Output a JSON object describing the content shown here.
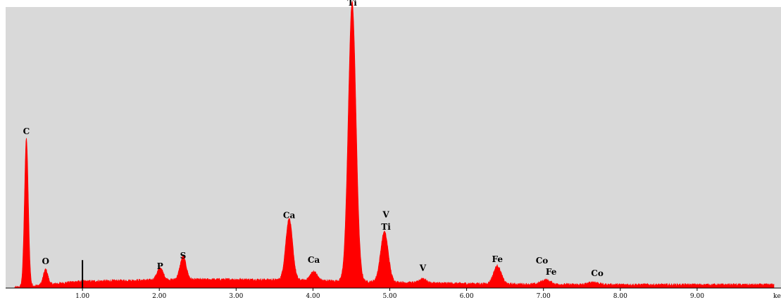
{
  "chart_data": {
    "type": "area",
    "x_unit_label": "ke",
    "xlim": [
      0,
      10.0
    ],
    "ylim": [
      0,
      100
    ],
    "grid": false,
    "colors": {
      "plot_bg": "#d9d9d9",
      "spectrum": "#ff0000",
      "axis": "#000000"
    },
    "x_ticks": [
      {
        "value": 1.0,
        "label": "1.00"
      },
      {
        "value": 2.0,
        "label": "2.00"
      },
      {
        "value": 3.0,
        "label": "3.00"
      },
      {
        "value": 4.0,
        "label": "4.00"
      },
      {
        "value": 5.0,
        "label": "5.00"
      },
      {
        "value": 6.0,
        "label": "6.00"
      },
      {
        "value": 7.0,
        "label": "7.00"
      },
      {
        "value": 8.0,
        "label": "8.00"
      },
      {
        "value": 9.0,
        "label": "9.00"
      }
    ],
    "marker": {
      "x": 1.0,
      "height": 10
    },
    "peaks": [
      {
        "x": 0.27,
        "height": 53,
        "width": 0.025
      },
      {
        "x": 0.52,
        "height": 5.5,
        "width": 0.03
      },
      {
        "x": 2.01,
        "height": 4.3,
        "width": 0.04
      },
      {
        "x": 2.31,
        "height": 8.3,
        "width": 0.04
      },
      {
        "x": 3.69,
        "height": 22,
        "width": 0.045
      },
      {
        "x": 4.01,
        "height": 3.2,
        "width": 0.045
      },
      {
        "x": 4.51,
        "height": 100,
        "width": 0.05
      },
      {
        "x": 4.93,
        "height": 18,
        "width": 0.05
      },
      {
        "x": 5.43,
        "height": 1.6,
        "width": 0.04
      },
      {
        "x": 6.4,
        "height": 6.5,
        "width": 0.05
      },
      {
        "x": 7.03,
        "height": 1.6,
        "width": 0.06
      },
      {
        "x": 7.65,
        "height": 0.9,
        "width": 0.06
      }
    ],
    "labels": [
      {
        "text": "C",
        "x": 0.27,
        "level": 55
      },
      {
        "text": "O",
        "x": 0.52,
        "level": 8.5
      },
      {
        "text": "P",
        "x": 2.01,
        "level": 6.8
      },
      {
        "text": "S",
        "x": 2.31,
        "level": 10.5
      },
      {
        "text": "Ca",
        "x": 3.69,
        "level": 25
      },
      {
        "text": "Ca",
        "x": 4.01,
        "level": 9
      },
      {
        "text": "Ti",
        "x": 4.51,
        "level": 101
      },
      {
        "text": "V",
        "x": 4.95,
        "level": 25.3
      },
      {
        "text": "Ti",
        "x": 4.95,
        "level": 20.8
      },
      {
        "text": "V",
        "x": 5.43,
        "level": 6.2
      },
      {
        "text": "Fe",
        "x": 6.4,
        "level": 9.3
      },
      {
        "text": "Co",
        "x": 6.98,
        "level": 8.8
      },
      {
        "text": "Fe",
        "x": 7.1,
        "level": 4.8
      },
      {
        "text": "Co",
        "x": 7.7,
        "level": 4.3
      }
    ]
  }
}
